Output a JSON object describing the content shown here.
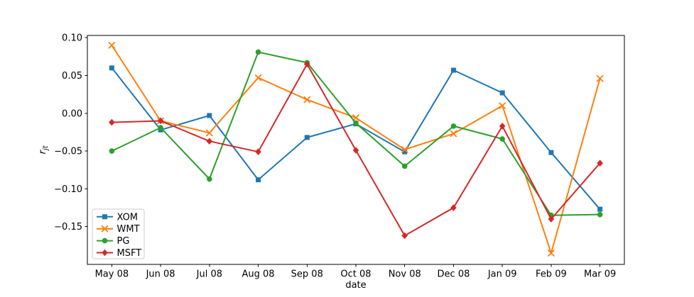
{
  "figure": {
    "background": "#ffffff",
    "axis_color": "#000000",
    "text_color": "#000000"
  },
  "chart_data": {
    "type": "line",
    "title": "",
    "xlabel": "date",
    "ylabel": "r_jt",
    "ylabel_parts": {
      "base": "r",
      "subscript": "jt"
    },
    "grid": false,
    "legend_position": "lower-left",
    "categories": [
      "May 08",
      "Jun 08",
      "Jul 08",
      "Aug 08",
      "Sep 08",
      "Oct 08",
      "Nov 08",
      "Dec 08",
      "Jan 09",
      "Feb 09",
      "Mar 09"
    ],
    "series": [
      {
        "name": "XOM",
        "color": "#1f77b4",
        "marker": "square",
        "values": [
          0.06,
          -0.022,
          -0.003,
          -0.088,
          -0.032,
          -0.014,
          -0.051,
          0.057,
          0.027,
          -0.052,
          -0.127
        ]
      },
      {
        "name": "WMT",
        "color": "#ff7f0e",
        "marker": "x",
        "values": [
          0.09,
          -0.01,
          -0.026,
          0.047,
          0.018,
          -0.006,
          -0.048,
          -0.027,
          0.01,
          -0.185,
          0.046
        ]
      },
      {
        "name": "PG",
        "color": "#2ca02c",
        "marker": "circle",
        "values": [
          -0.05,
          -0.019,
          -0.087,
          0.081,
          0.067,
          -0.013,
          -0.07,
          -0.017,
          -0.034,
          -0.135,
          -0.134
        ]
      },
      {
        "name": "MSFT",
        "color": "#d62728",
        "marker": "diamond",
        "values": [
          -0.012,
          -0.01,
          -0.037,
          -0.051,
          0.065,
          -0.049,
          -0.162,
          -0.125,
          -0.017,
          -0.14,
          -0.066
        ]
      }
    ],
    "yticks": {
      "values": [
        0.1,
        0.05,
        0.0,
        -0.05,
        -0.1,
        -0.15
      ],
      "labels": [
        "0.10",
        "0.05",
        "0.00",
        "−0.05",
        "−0.10",
        "−0.15"
      ]
    },
    "ylim": [
      -0.2,
      0.103
    ],
    "legend_entries": [
      "XOM",
      "WMT",
      "PG",
      "MSFT"
    ]
  }
}
